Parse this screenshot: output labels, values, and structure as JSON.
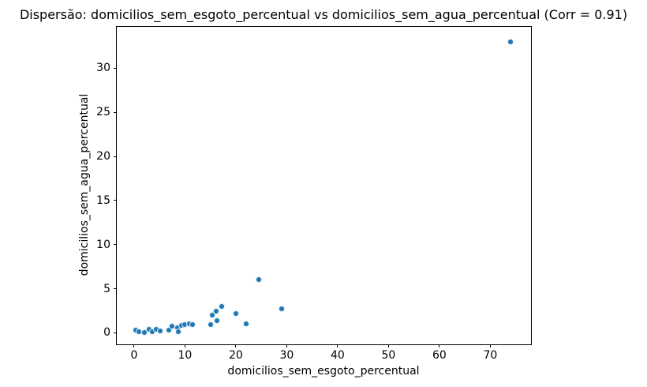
{
  "chart_data": {
    "type": "scatter",
    "title": "Dispersão: domicilios_sem_esgoto_percentual vs domicilios_sem_agua_percentual (Corr = 0.91)",
    "xlabel": "domicilios_sem_esgoto_percentual",
    "ylabel": "domicilios_sem_agua_percentual",
    "correlation": 0.91,
    "marker_color": "#1f77b4",
    "grid": false,
    "legend": "none",
    "xlim": [
      -3.4,
      78
    ],
    "ylim": [
      -1.3,
      34.7
    ],
    "xticks": [
      0,
      10,
      20,
      30,
      40,
      50,
      60,
      70
    ],
    "yticks": [
      0,
      5,
      10,
      15,
      20,
      25,
      30
    ],
    "points": [
      [
        0.3,
        0.3
      ],
      [
        1.0,
        0.15
      ],
      [
        2.1,
        0.05
      ],
      [
        3.0,
        0.4
      ],
      [
        3.6,
        0.15
      ],
      [
        4.4,
        0.4
      ],
      [
        5.1,
        0.2
      ],
      [
        6.9,
        0.35
      ],
      [
        7.5,
        0.8
      ],
      [
        8.5,
        0.55
      ],
      [
        8.7,
        0.15
      ],
      [
        9.3,
        0.85
      ],
      [
        9.9,
        0.95
      ],
      [
        10.8,
        1.0
      ],
      [
        11.5,
        0.95
      ],
      [
        15.0,
        0.9
      ],
      [
        15.3,
        2.0
      ],
      [
        16.2,
        2.5
      ],
      [
        16.3,
        1.35
      ],
      [
        17.2,
        3.0
      ],
      [
        20.0,
        2.2
      ],
      [
        22.0,
        1.0
      ],
      [
        24.5,
        6.0
      ],
      [
        29.0,
        2.7
      ],
      [
        74.0,
        33.0
      ]
    ]
  }
}
